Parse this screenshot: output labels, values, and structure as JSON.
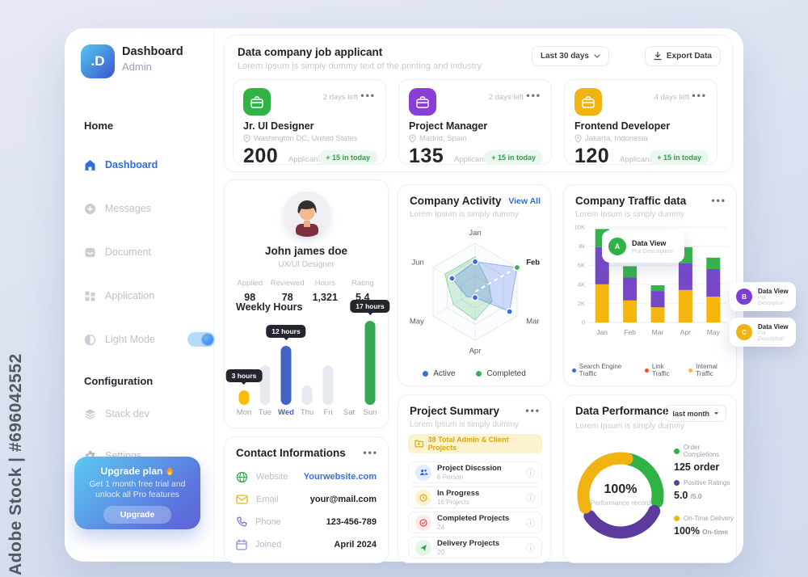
{
  "watermark": "Adobe Stock | #696042552",
  "sidebar": {
    "logo": ".D",
    "brand": "Dashboard",
    "brand_sub": "Admin",
    "home_heading": "Home",
    "items": [
      {
        "label": "Dashboard"
      },
      {
        "label": "Messages"
      },
      {
        "label": "Document"
      },
      {
        "label": "Application"
      },
      {
        "label": "Light Mode"
      }
    ],
    "config_heading": "Configuration",
    "config_items": [
      {
        "label": "Stack dev"
      },
      {
        "label": "Settings"
      }
    ],
    "upgrade": {
      "title": "Upgrade plan",
      "line1": "Get 1 month free trial and",
      "line2": "unlock all Pro features",
      "button": "Upgrade"
    }
  },
  "header": {
    "title": "Data company job applicant",
    "subtitle": "Lorem Ipsum is simply dummy text of the printing and industry",
    "range": "Last 30 days",
    "export": "Export Data"
  },
  "jobs": [
    {
      "title": "Jr. UI Designer",
      "days": "2 days left",
      "menu": "•••",
      "location": "Washington DC, United States",
      "count": "200",
      "count_label": "Applicants",
      "badge": "+ 15 in today",
      "accent": "#2fb344"
    },
    {
      "title": "Project Manager",
      "days": "2 days left",
      "menu": "•••",
      "location": "Madrid, Spain",
      "count": "135",
      "count_label": "Applicants",
      "badge": "+ 15 in today",
      "accent": "#8a3ed8"
    },
    {
      "title": "Frontend Developer",
      "days": "4 days left",
      "menu": "•••",
      "location": "Jakarta, Indonesia",
      "count": "120",
      "count_label": "Applicants",
      "badge": "+ 15 in today",
      "accent": "#f0b312"
    }
  ],
  "profile": {
    "name": "John james doe",
    "role": "UX/UI Designer",
    "stats": [
      {
        "label": "Applied",
        "value": "98"
      },
      {
        "label": "Reviewed",
        "value": "78"
      },
      {
        "label": "Hours",
        "value": "1,321"
      },
      {
        "label": "Rating",
        "value": "5.4"
      }
    ],
    "weekly_title": "Weekly Hours"
  },
  "activity": {
    "title": "Company Activity",
    "subtitle": "Lorem Ipsum is simply dummy",
    "view_all": "View All",
    "legend_active": "Active",
    "legend_completed": "Completed"
  },
  "traffic": {
    "title": "Company Traffic data",
    "subtitle": "Lorem Ipsum is simply dummy",
    "menu": "•••",
    "legend": [
      {
        "label": "Search Engine Traffic",
        "color": "#3b6ce5"
      },
      {
        "label": "Link Traffic",
        "color": "#f4511e"
      },
      {
        "label": "Internal Traffic",
        "color": "#ffb74d"
      }
    ]
  },
  "callouts": [
    {
      "letter": "A",
      "title": "Data View",
      "subtitle": "Put Description",
      "color": "#2fb344"
    },
    {
      "letter": "B",
      "title": "Data View",
      "subtitle": "Put Description",
      "color": "#7b3fd4"
    },
    {
      "letter": "C",
      "title": "Data View",
      "subtitle": "Put Description",
      "color": "#f0b312"
    }
  ],
  "summary": {
    "title": "Project Summary",
    "subtitle": "Lorem Ipsum is simply dummy",
    "menu": "•••",
    "banner": "38  Total Admin & Client Projects",
    "items": [
      {
        "title": "Project Discssion",
        "subtitle": "6 Person"
      },
      {
        "title": "In Progress",
        "subtitle": "16 Projects"
      },
      {
        "title": "Completed Projects",
        "subtitle": "24"
      },
      {
        "title": "Delivery Projects",
        "subtitle": "20"
      }
    ]
  },
  "contact": {
    "title": "Contact Informations",
    "menu": "•••",
    "rows": [
      {
        "label": "Website",
        "value": "Yourwebsite.com"
      },
      {
        "label": "Email",
        "value": "your@mail.com"
      },
      {
        "label": "Phone",
        "value": "123-456-789"
      },
      {
        "label": "Joined",
        "value": "April 2024"
      }
    ]
  },
  "performance": {
    "title": "Data Performance",
    "range": "last month",
    "subtitle": "Lorem Ipsum is simply dummy",
    "center_value": "100%",
    "center_label": "Performance record",
    "legend": [
      {
        "label": "Order Completions",
        "value": "125 order",
        "suffix": "",
        "color": "#2fb344"
      },
      {
        "label": "Positive Ratings",
        "value": "5.0",
        "suffix": "/5.0",
        "color": "#5d3a9e"
      },
      {
        "label": "On-Time Delivery",
        "value": "100%",
        "suffix": "On-time",
        "color": "#f0b312"
      }
    ]
  },
  "chart_data": [
    {
      "type": "bar",
      "id": "weekly-hours",
      "title": "Weekly Hours",
      "categories": [
        "Mon",
        "Tue",
        "Wed",
        "Thu",
        "Fri",
        "Sat",
        "Sun"
      ],
      "values": [
        3,
        8,
        12,
        4,
        8,
        0,
        17
      ],
      "unit": "hours",
      "ylim": [
        0,
        17
      ],
      "bar_colors": [
        "#fbbc05",
        "#e6e9f0",
        "#4262c5",
        "#e6e9f0",
        "#e6e9f0",
        "#e6e9f0",
        "#34a853"
      ],
      "tooltips": [
        {
          "index": 0,
          "label": "3 hours"
        },
        {
          "index": 2,
          "label": "12 hours"
        },
        {
          "index": 6,
          "label": "17 hours"
        }
      ],
      "highlight_category": "Wed",
      "highlight_color": "#4262c5"
    },
    {
      "type": "radar",
      "id": "company-activity",
      "title": "Company Activity",
      "axes": [
        "Jan",
        "Feb",
        "Mar",
        "Apr",
        "May",
        "Jun"
      ],
      "rmax": 10,
      "series": [
        {
          "name": "Active",
          "color": "#3b6ce5",
          "values": [
            6.2,
            10,
            8.2,
            1.2,
            2,
            5.5
          ]
        },
        {
          "name": "Completed",
          "color": "#34b357",
          "values": [
            7.2,
            3.3,
            4,
            5.8,
            5.2,
            7.2
          ]
        }
      ],
      "dashed_axis": "Feb",
      "legend_position": "bottom"
    },
    {
      "type": "bar",
      "id": "company-traffic",
      "title": "Company Traffic data",
      "stacked": true,
      "categories": [
        "Jan",
        "Feb",
        "Mar",
        "Apr",
        "May"
      ],
      "ylim": [
        0,
        10000
      ],
      "yticks": [
        "0",
        "2K",
        "4K",
        "6K",
        "8k",
        "10K"
      ],
      "series": [
        {
          "name": "Search Engine Traffic",
          "color": "#f6b60d",
          "values": [
            4000,
            2300,
            1600,
            3400,
            2700
          ]
        },
        {
          "name": "Link Traffic",
          "color": "#7448c6",
          "values": [
            3900,
            2400,
            1700,
            2800,
            2900
          ]
        },
        {
          "name": "Internal Traffic",
          "color": "#35b34a",
          "values": [
            1900,
            1200,
            600,
            1700,
            1200
          ]
        }
      ],
      "grid": true
    },
    {
      "type": "pie",
      "id": "data-performance",
      "title": "Data Performance",
      "donut": true,
      "center_text": "100% Performance record",
      "segments": [
        {
          "name": "Order Completions",
          "color": "#2fb344",
          "start_deg": -78,
          "end_deg": 10
        },
        {
          "name": "Positive Ratings",
          "color": "#5d3a9e",
          "start_deg": 25,
          "end_deg": 146
        },
        {
          "name": "On-Time Delivery",
          "color": "#f0b312",
          "start_deg": 161,
          "end_deg": 280
        }
      ]
    }
  ]
}
